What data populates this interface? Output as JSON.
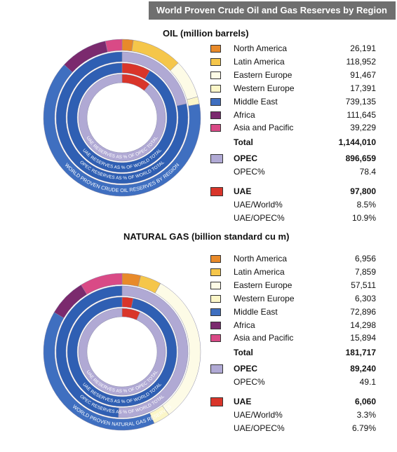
{
  "header": {
    "title": "World Proven Crude Oil and Gas Reserves by Region"
  },
  "colors": {
    "north_america": "#e88a2a",
    "latin_america": "#f5c64a",
    "eastern_europe": "#fdfbe6",
    "western_europe": "#fbf6c8",
    "middle_east": "#3f6fc0",
    "africa": "#7b2a6e",
    "asia_pacific": "#d94a86",
    "opec": "#b0a9d4",
    "uae": "#d9352a",
    "inner_blue": "#2f5fb3",
    "outer_ring_blue": "#5b8fd4"
  },
  "chart_data": [
    {
      "type": "pie",
      "title": "OIL (million barrels)",
      "ring_labels": [
        "UAE RESERVES AS % OF OPEC TOTAL",
        "UAE RESERVES AS % OF WORLD TOTAL",
        "OPEC RESERVES AS % OF WORLD TOTAL",
        "WORLD PROVEN CRUDE OIL RESERVES BY REGION"
      ],
      "regions": [
        {
          "name": "North America",
          "value": "26,191",
          "color": "#e88a2a"
        },
        {
          "name": "Latin America",
          "value": "118,952",
          "color": "#f5c64a"
        },
        {
          "name": "Eastern Europe",
          "value": "91,467",
          "color": "#fdfbe6"
        },
        {
          "name": "Western Europe",
          "value": "17,391",
          "color": "#fbf6c8"
        },
        {
          "name": "Middle East",
          "value": "739,135",
          "color": "#3f6fc0"
        },
        {
          "name": "Africa",
          "value": "111,645",
          "color": "#7b2a6e"
        },
        {
          "name": "Asia and Pacific",
          "value": "39,229",
          "color": "#d94a86"
        }
      ],
      "total_label": "Total",
      "total_value": "1,144,010",
      "opec_label": "OPEC",
      "opec_value": "896,659",
      "opec_pct_label": "OPEC%",
      "opec_pct_value": "78.4",
      "uae_label": "UAE",
      "uae_value": "97,800",
      "uae_world_label": "UAE/World%",
      "uae_world_value": "8.5%",
      "uae_opec_label": "UAE/OPEC%",
      "uae_opec_value": "10.9%"
    },
    {
      "type": "pie",
      "title": "NATURAL GAS (billion standard cu m)",
      "ring_labels": [
        "UAE RESERVES AS % OF OPEC TOTAL",
        "UAE RESERVES AS % OF WORLD TOTAL",
        "OPEC RESERVES AS % OF WORLD TOTAL",
        "WORLD PROVEN NATURAL GAS RESERVES"
      ],
      "regions": [
        {
          "name": "North America",
          "value": "6,956",
          "color": "#e88a2a"
        },
        {
          "name": "Latin America",
          "value": "7,859",
          "color": "#f5c64a"
        },
        {
          "name": "Eastern Europe",
          "value": "57,511",
          "color": "#fdfbe6"
        },
        {
          "name": "Western Europe",
          "value": "6,303",
          "color": "#fbf6c8"
        },
        {
          "name": "Middle East",
          "value": "72,896",
          "color": "#3f6fc0"
        },
        {
          "name": "Africa",
          "value": "14,298",
          "color": "#7b2a6e"
        },
        {
          "name": "Asia and Pacific",
          "value": "15,894",
          "color": "#d94a86"
        }
      ],
      "total_label": "Total",
      "total_value": "181,717",
      "opec_label": "OPEC",
      "opec_value": "89,240",
      "opec_pct_label": "OPEC%",
      "opec_pct_value": "49.1",
      "uae_label": "UAE",
      "uae_value": "6,060",
      "uae_world_label": "UAE/World%",
      "uae_world_value": "3.3%",
      "uae_opec_label": "UAE/OPEC%",
      "uae_opec_value": "6.79%"
    }
  ]
}
